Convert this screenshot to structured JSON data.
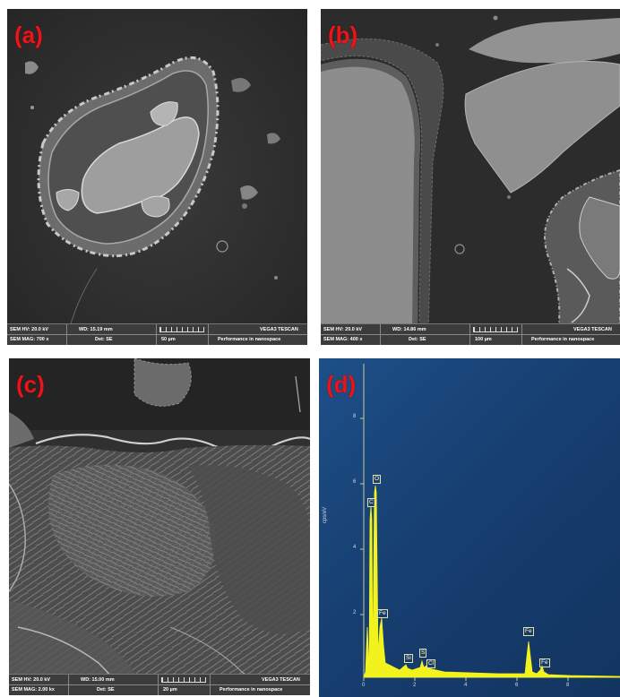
{
  "panels": [
    {
      "label": "(a)",
      "info": {
        "hv": "SEM HV: 20.0 kV",
        "wd": "WD: 15.19 mm",
        "mag": "SEM MAG: 700 x",
        "det": "Det: SE",
        "scale": "50 µm",
        "brand": "VEGA3 TESCAN",
        "tagline": "Performance in nanospace"
      }
    },
    {
      "label": "(b)",
      "info": {
        "hv": "SEM HV: 20.0 kV",
        "wd": "WD: 14.86 mm",
        "mag": "SEM MAG: 400 x",
        "det": "Det: SE",
        "scale": "100 µm",
        "brand": "VEGA3 TESCAN",
        "tagline": "Performance in nanospace"
      }
    },
    {
      "label": "(c)",
      "info": {
        "hv": "SEM HV: 20.0 kV",
        "wd": "WD: 15.00 mm",
        "mag": "SEM MAG: 2.00 kx",
        "det": "Det: SE",
        "scale": "20 µm",
        "brand": "VEGA3 TESCAN",
        "tagline": "Performance in nanospace"
      }
    },
    {
      "label": "(d)",
      "eds": {
        "ylabel": "cps/eV",
        "yticks": [
          "8",
          "6",
          "4",
          "2"
        ],
        "xticks": [
          "0",
          "2",
          "4",
          "6",
          "8"
        ],
        "peak_labels": [
          "C",
          "O",
          "Fe",
          "Si",
          "S",
          "Cl",
          "Fe",
          "Fe"
        ],
        "trace_color": "#f2f21e",
        "background_color": "#1a4a80"
      }
    }
  ]
}
